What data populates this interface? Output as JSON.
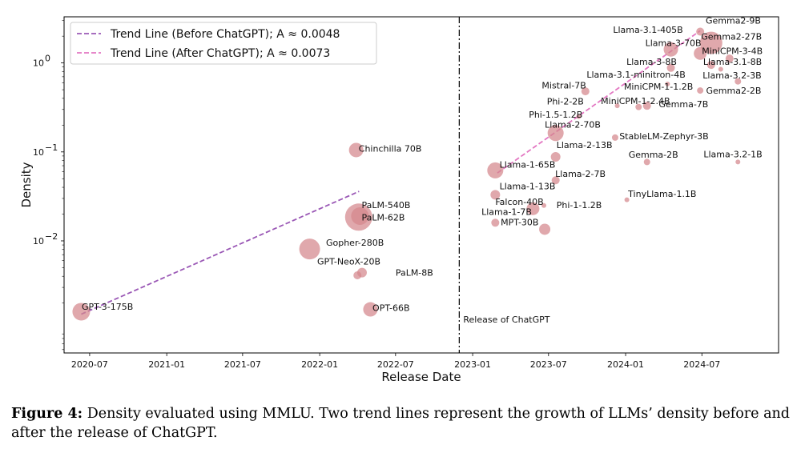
{
  "chart_data": {
    "type": "scatter",
    "xlabel": "Release Date",
    "ylabel": "Density",
    "yscale": "log",
    "xlim": [
      "2020-05-01",
      "2024-12-31"
    ],
    "ylim": [
      0.00055,
      3.3
    ],
    "x_ticks": [
      "2020-07",
      "2021-01",
      "2021-07",
      "2022-01",
      "2022-07",
      "2023-01",
      "2023-07",
      "2024-01",
      "2024-07"
    ],
    "y_ticks": [
      {
        "value": 0.01,
        "base": "10",
        "exp": "−2"
      },
      {
        "value": 0.1,
        "base": "10",
        "exp": "−1"
      },
      {
        "value": 1,
        "base": "10",
        "exp": "0"
      }
    ],
    "event_line": {
      "date": "2022-11-30",
      "label": "Release of ChatGPT"
    },
    "trend_lines": [
      {
        "label": "Trend Line (Before ChatGPT); A ≈ 0.0048",
        "color": "#9B59B6",
        "start": {
          "x": "2020-06-11",
          "y": 0.0015
        },
        "end": {
          "x": "2022-04-05",
          "y": 0.036
        }
      },
      {
        "label": "Trend Line (After ChatGPT); A ≈ 0.0073",
        "color": "#E377C2",
        "start": {
          "x": "2023-03-01",
          "y": 0.058
        },
        "end": {
          "x": "2024-06-27",
          "y": 2.3
        }
      }
    ],
    "points": [
      {
        "name": "GPT-3-175B",
        "x": "2020-06-11",
        "y": 0.0016,
        "size": 11
      },
      {
        "name": "Chinchilla 70B",
        "x": "2022-03-29",
        "y": 0.105,
        "size": 9
      },
      {
        "name": "PaLM-540B",
        "x": "2022-04-04",
        "y": 0.0185,
        "size": 17
      },
      {
        "name": "PaLM-62B",
        "x": "2022-04-07",
        "y": 0.019,
        "size": 11
      },
      {
        "name": "PaLM-8B",
        "x": "2022-04-12",
        "y": 0.0044,
        "size": 6
      },
      {
        "name": "Gopher-280B",
        "x": "2021-12-08",
        "y": 0.0081,
        "size": 13
      },
      {
        "name": "GPT-NeoX-20B",
        "x": "2022-04-01",
        "y": 0.0041,
        "size": 5
      },
      {
        "name": "OPT-66B",
        "x": "2022-05-02",
        "y": 0.0017,
        "size": 9
      },
      {
        "name": "Llama-1-65B",
        "x": "2023-02-24",
        "y": 0.062,
        "size": 10
      },
      {
        "name": "Llama-1-13B",
        "x": "2023-02-24",
        "y": 0.033,
        "size": 6
      },
      {
        "name": "Llama-1-7B",
        "x": "2023-02-24",
        "y": 0.016,
        "size": 5
      },
      {
        "name": "Falcon-40B",
        "x": "2023-05-25",
        "y": 0.023,
        "size": 8
      },
      {
        "name": "MPT-30B",
        "x": "2023-06-22",
        "y": 0.0135,
        "size": 7
      },
      {
        "name": "Llama-2-70B",
        "x": "2023-07-18",
        "y": 0.163,
        "size": 10
      },
      {
        "name": "Llama-2-13B",
        "x": "2023-07-18",
        "y": 0.088,
        "size": 6
      },
      {
        "name": "Llama-2-7B",
        "x": "2023-07-18",
        "y": 0.048,
        "size": 5
      },
      {
        "name": "Phi-1-1.2B",
        "x": "2023-06-20",
        "y": 0.025,
        "size": 3
      },
      {
        "name": "Phi-1.5-1.2B",
        "x": "2023-09-11",
        "y": 0.25,
        "size": 3
      },
      {
        "name": "Mistral-7B",
        "x": "2023-09-27",
        "y": 0.48,
        "size": 5
      },
      {
        "name": "Phi-2-2B",
        "x": "2023-12-12",
        "y": 0.33,
        "size": 3
      },
      {
        "name": "StableLM-Zephyr-3B",
        "x": "2023-12-07",
        "y": 0.145,
        "size": 4
      },
      {
        "name": "TinyLlama-1.1B",
        "x": "2024-01-04",
        "y": 0.029,
        "size": 3
      },
      {
        "name": "Gemma-2B",
        "x": "2024-02-21",
        "y": 0.077,
        "size": 4
      },
      {
        "name": "Gemma-7B",
        "x": "2024-02-21",
        "y": 0.33,
        "size": 5
      },
      {
        "name": "MiniCPM-1-2.4B",
        "x": "2024-02-01",
        "y": 0.32,
        "size": 4
      },
      {
        "name": "MiniCPM-1-1.2B",
        "x": "2024-04-10",
        "y": 0.58,
        "size": 3
      },
      {
        "name": "Llama-3.1-minitron-4B",
        "x": "2024-08-15",
        "y": 0.85,
        "size": 3
      },
      {
        "name": "Llama-3-8B",
        "x": "2024-04-18",
        "y": 0.88,
        "size": 5
      },
      {
        "name": "Llama-3-70B",
        "x": "2024-04-18",
        "y": 1.42,
        "size": 9
      },
      {
        "name": "Llama-3.1-405B",
        "x": "2024-07-23",
        "y": 1.68,
        "size": 14
      },
      {
        "name": "Gemma2-9B",
        "x": "2024-06-27",
        "y": 2.25,
        "size": 5
      },
      {
        "name": "Gemma2-27B",
        "x": "2024-06-27",
        "y": 1.28,
        "size": 8
      },
      {
        "name": "MiniCPM-3-4B",
        "x": "2024-09-05",
        "y": 1.12,
        "size": 5
      },
      {
        "name": "Llama-3.1-8B",
        "x": "2024-07-23",
        "y": 0.95,
        "size": 5
      },
      {
        "name": "Llama-3.2-3B",
        "x": "2024-09-25",
        "y": 0.62,
        "size": 4
      },
      {
        "name": "Gemma2-2B",
        "x": "2024-06-27",
        "y": 0.49,
        "size": 4
      },
      {
        "name": "Llama-3.2-1B",
        "x": "2024-09-25",
        "y": 0.077,
        "size": 3
      }
    ],
    "labels": [
      {
        "text": "GPT-3-175B",
        "x": "2020-06-12",
        "y": 0.00183
      },
      {
        "text": "Chinchilla 70B",
        "x": "2022-04-04",
        "y": 0.1095
      },
      {
        "text": "PaLM-540B",
        "x": "2022-04-11",
        "y": 0.0254
      },
      {
        "text": "PaLM-62B",
        "x": "2022-04-11",
        "y": 0.0185
      },
      {
        "text": "PaLM-8B",
        "x": "2022-07-01",
        "y": 0.0044
      },
      {
        "text": "Gopher-280B",
        "x": "2022-01-16",
        "y": 0.0096
      },
      {
        "text": "GPT-NeoX-20B",
        "x": "2021-12-26",
        "y": 0.0059
      },
      {
        "text": "OPT-66B",
        "x": "2022-05-07",
        "y": 0.00178
      },
      {
        "text": "Llama-1-65B",
        "x": "2023-03-06",
        "y": 0.072
      },
      {
        "text": "Llama-1-13B",
        "x": "2023-03-06",
        "y": 0.0415
      },
      {
        "text": "Falcon-40B",
        "x": "2023-02-24",
        "y": 0.0275
      },
      {
        "text": "Llama-1-7B",
        "x": "2023-01-22",
        "y": 0.0213
      },
      {
        "text": "MPT-30B",
        "x": "2023-03-09",
        "y": 0.0162
      },
      {
        "text": "Llama-2-70B",
        "x": "2023-06-22",
        "y": 0.203
      },
      {
        "text": "Llama-2-13B",
        "x": "2023-07-20",
        "y": 0.1195
      },
      {
        "text": "Llama-2-7B",
        "x": "2023-07-17",
        "y": 0.057
      },
      {
        "text": "Phi-1-1.2B",
        "x": "2023-07-20",
        "y": 0.0255
      },
      {
        "text": "Phi-1.5-1.2B",
        "x": "2023-05-15",
        "y": 0.263
      },
      {
        "text": "Mistral-7B",
        "x": "2023-06-15",
        "y": 0.56
      },
      {
        "text": "Phi-2-2B",
        "x": "2023-06-27",
        "y": 0.372
      },
      {
        "text": "StableLM-Zephyr-3B",
        "x": "2023-12-17",
        "y": 0.1505
      },
      {
        "text": "TinyLlama-1.1B",
        "x": "2024-01-07",
        "y": 0.0338
      },
      {
        "text": "Gemma-2B",
        "x": "2024-01-08",
        "y": 0.094
      },
      {
        "text": "Gemma-7B",
        "x": "2024-03-20",
        "y": 0.346
      },
      {
        "text": "MiniCPM-1-2.4B",
        "x": "2023-11-03",
        "y": 0.375
      },
      {
        "text": "MiniCPM-1-1.2B",
        "x": "2023-12-28",
        "y": 0.545
      },
      {
        "text": "Llama-3.1-minitron-4B",
        "x": "2023-09-30",
        "y": 0.74
      },
      {
        "text": "Llama-3-8B",
        "x": "2024-01-03",
        "y": 1.035
      },
      {
        "text": "Llama-3-70B",
        "x": "2024-02-17",
        "y": 1.68
      },
      {
        "text": "Llama-3.1-405B",
        "x": "2023-12-02",
        "y": 2.38
      },
      {
        "text": "Gemma2-9B",
        "x": "2024-07-10",
        "y": 3.0
      },
      {
        "text": "Gemma2-27B",
        "x": "2024-06-29",
        "y": 1.99
      },
      {
        "text": "MiniCPM-3-4B",
        "x": "2024-07-01",
        "y": 1.37
      },
      {
        "text": "Llama-3.1-8B",
        "x": "2024-07-04",
        "y": 1.035
      },
      {
        "text": "Llama-3.2-3B",
        "x": "2024-07-03",
        "y": 0.728
      },
      {
        "text": "Gemma2-2B",
        "x": "2024-07-11",
        "y": 0.49
      },
      {
        "text": "Llama-3.2-1B",
        "x": "2024-07-05",
        "y": 0.0945
      }
    ]
  },
  "caption": {
    "label": "Figure 4:",
    "text": "Density evaluated using MMLU. Two trend lines represent the growth of LLMs’ density before and after the release of ChatGPT."
  }
}
